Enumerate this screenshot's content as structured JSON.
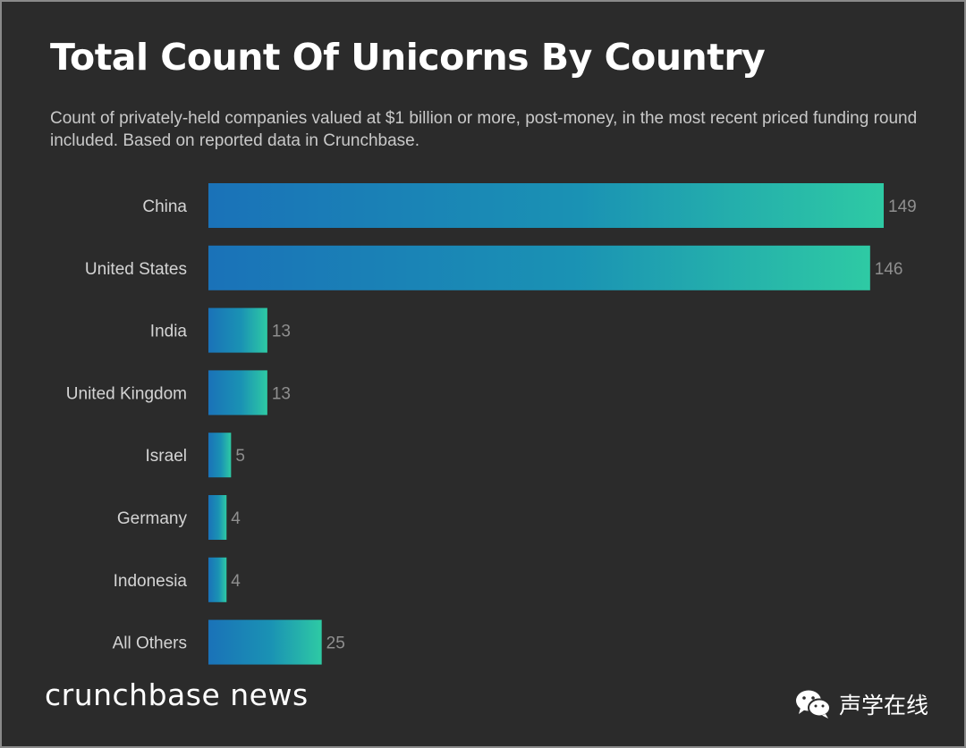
{
  "title": "Total Count Of Unicorns By Country",
  "subtitle": "Count of privately-held companies valued at $1 billion or more, post-money, in the most recent priced funding round included. Based on reported data in Crunchbase.",
  "brand": "crunchbase news",
  "watermark": "声学在线",
  "colors": {
    "background": "#2b2b2b",
    "bar_start": "#1a72b8",
    "bar_mid": "#1a92b4",
    "bar_end": "#2ecaa4"
  },
  "chart_data": {
    "type": "bar",
    "orientation": "horizontal",
    "title": "Total Count Of Unicorns By Country",
    "xlabel": "",
    "ylabel": "",
    "categories": [
      "China",
      "United States",
      "India",
      "United Kingdom",
      "Israel",
      "Germany",
      "Indonesia",
      "All Others"
    ],
    "values": [
      149,
      146,
      13,
      13,
      5,
      4,
      4,
      25
    ],
    "xlim": [
      0,
      149
    ],
    "grid": false,
    "legend": "none"
  }
}
